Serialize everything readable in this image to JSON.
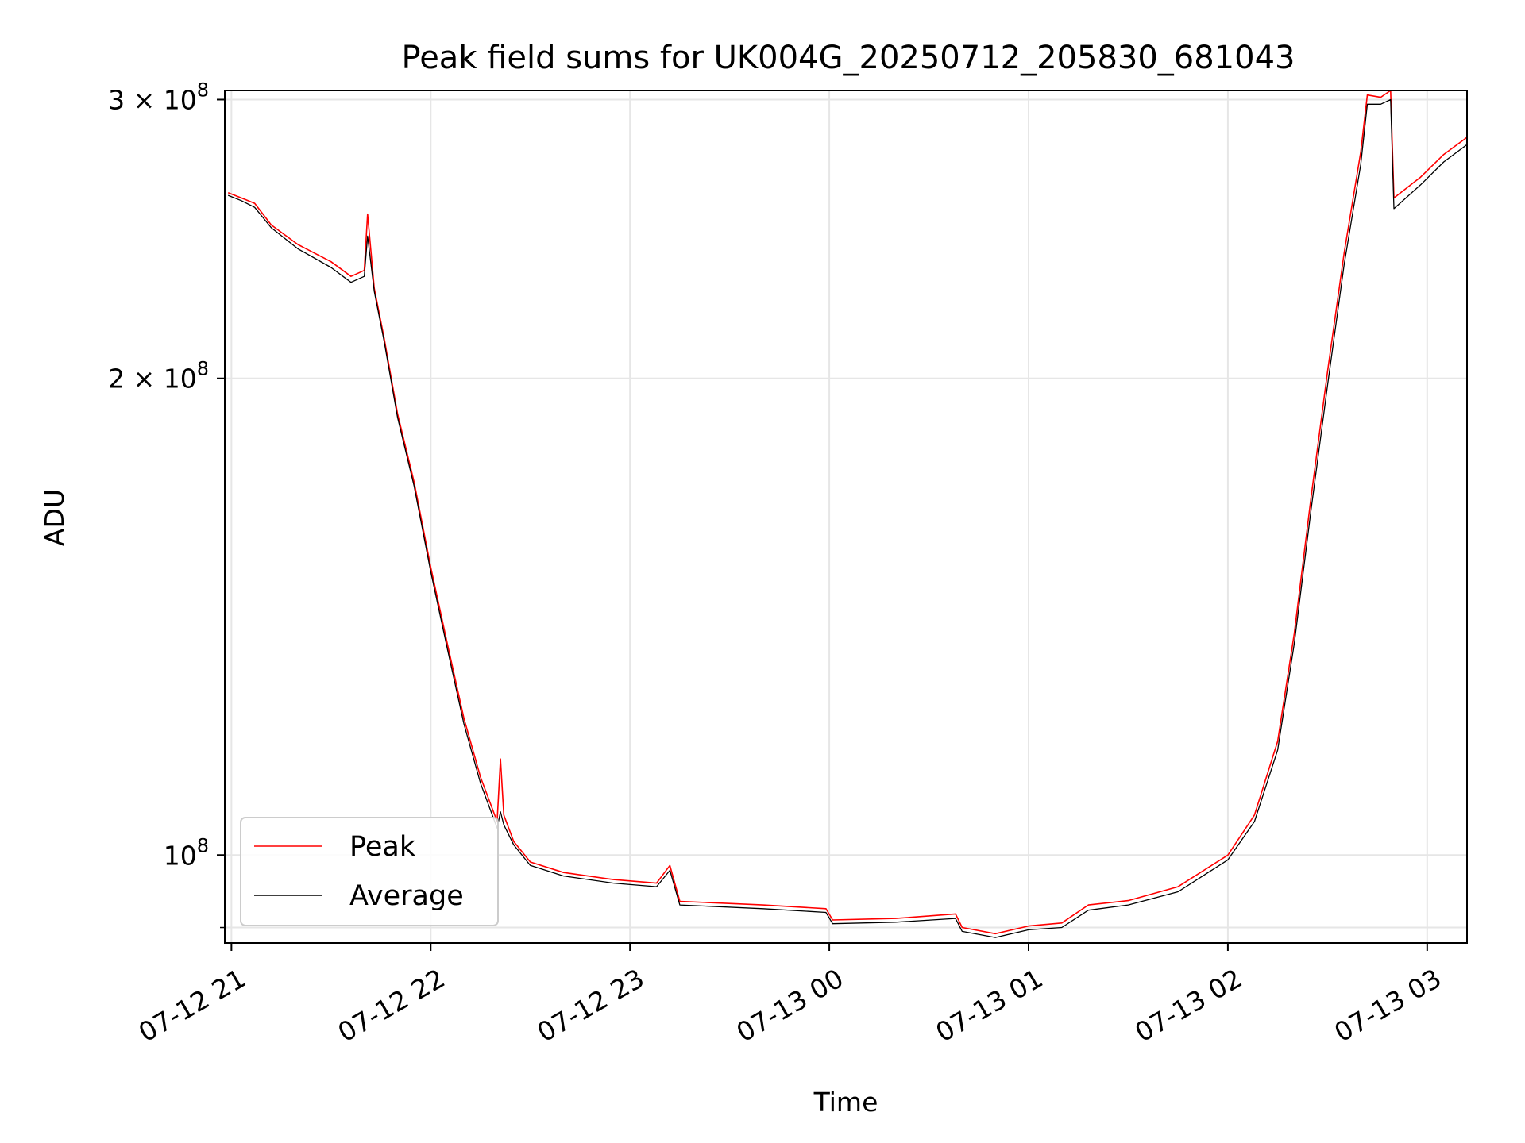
{
  "chart_data": {
    "type": "line",
    "title": "Peak field sums for UK004G_20250712_205830_681043",
    "xlabel": "Time",
    "ylabel": "ADU",
    "y_scale": "log",
    "xlim": [
      "2025-07-12 20:58",
      "2025-07-13 03:12"
    ],
    "ylim": [
      88000000,
      304000000
    ],
    "grid": true,
    "legend_position": "lower-left",
    "x_ticks": [
      {
        "label": "07-12 21",
        "value": "2025-07-12 21:00"
      },
      {
        "label": "07-12 22",
        "value": "2025-07-12 22:00"
      },
      {
        "label": "07-12 23",
        "value": "2025-07-12 23:00"
      },
      {
        "label": "07-13 00",
        "value": "2025-07-13 00:00"
      },
      {
        "label": "07-13 01",
        "value": "2025-07-13 01:00"
      },
      {
        "label": "07-13 02",
        "value": "2025-07-13 02:00"
      },
      {
        "label": "07-13 03",
        "value": "2025-07-13 03:00"
      }
    ],
    "y_ticks": [
      {
        "label_base": "3 × 10",
        "label_exp": "8",
        "value": 300000000
      },
      {
        "label_base": "2 × 10",
        "label_exp": "8",
        "value": 200000000
      },
      {
        "label_base": "10",
        "label_exp": "8",
        "value": 100000000
      }
    ],
    "series": [
      {
        "name": "Peak",
        "color": "#ff0000",
        "points": [
          [
            "2025-07-12 20:59",
            262000000
          ],
          [
            "2025-07-12 21:03",
            260000000
          ],
          [
            "2025-07-12 21:07",
            258000000
          ],
          [
            "2025-07-12 21:12",
            250000000
          ],
          [
            "2025-07-12 21:20",
            243000000
          ],
          [
            "2025-07-12 21:30",
            237000000
          ],
          [
            "2025-07-12 21:36",
            232000000
          ],
          [
            "2025-07-12 21:40",
            234000000
          ],
          [
            "2025-07-12 21:41",
            254000000
          ],
          [
            "2025-07-12 21:43",
            228000000
          ],
          [
            "2025-07-12 21:46",
            212000000
          ],
          [
            "2025-07-12 21:50",
            190000000
          ],
          [
            "2025-07-12 21:55",
            172000000
          ],
          [
            "2025-07-12 22:00",
            152000000
          ],
          [
            "2025-07-12 22:05",
            136000000
          ],
          [
            "2025-07-12 22:10",
            122000000
          ],
          [
            "2025-07-12 22:15",
            112000000
          ],
          [
            "2025-07-12 22:20",
            105000000
          ],
          [
            "2025-07-12 22:21",
            115000000
          ],
          [
            "2025-07-12 22:22",
            106000000
          ],
          [
            "2025-07-12 22:25",
            102000000
          ],
          [
            "2025-07-12 22:30",
            99000000
          ],
          [
            "2025-07-12 22:40",
            97500000
          ],
          [
            "2025-07-12 22:55",
            96500000
          ],
          [
            "2025-07-12 23:08",
            96000000
          ],
          [
            "2025-07-12 23:12",
            98500000
          ],
          [
            "2025-07-12 23:15",
            93500000
          ],
          [
            "2025-07-12 23:40",
            93000000
          ],
          [
            "2025-07-12 23:59",
            92500000
          ],
          [
            "2025-07-13 00:01",
            91000000
          ],
          [
            "2025-07-13 00:20",
            91200000
          ],
          [
            "2025-07-13 00:38",
            91800000
          ],
          [
            "2025-07-13 00:40",
            90000000
          ],
          [
            "2025-07-13 00:50",
            89200000
          ],
          [
            "2025-07-13 01:00",
            90200000
          ],
          [
            "2025-07-13 01:10",
            90600000
          ],
          [
            "2025-07-13 01:18",
            93000000
          ],
          [
            "2025-07-13 01:30",
            93600000
          ],
          [
            "2025-07-13 01:45",
            95500000
          ],
          [
            "2025-07-13 02:00",
            100000000
          ],
          [
            "2025-07-13 02:08",
            106000000
          ],
          [
            "2025-07-13 02:15",
            118000000
          ],
          [
            "2025-07-13 02:20",
            138000000
          ],
          [
            "2025-07-13 02:25",
            168000000
          ],
          [
            "2025-07-13 02:30",
            202000000
          ],
          [
            "2025-07-13 02:35",
            240000000
          ],
          [
            "2025-07-13 02:40",
            278000000
          ],
          [
            "2025-07-13 02:42",
            302000000
          ],
          [
            "2025-07-13 02:46",
            301000000
          ],
          [
            "2025-07-13 02:49",
            304000000
          ],
          [
            "2025-07-13 02:50",
            260000000
          ],
          [
            "2025-07-13 02:58",
            268000000
          ],
          [
            "2025-07-13 03:05",
            277000000
          ],
          [
            "2025-07-13 03:12",
            284000000
          ]
        ]
      },
      {
        "name": "Average",
        "color": "#000000",
        "points": [
          [
            "2025-07-12 20:59",
            261000000
          ],
          [
            "2025-07-12 21:03",
            259000000
          ],
          [
            "2025-07-12 21:07",
            256500000
          ],
          [
            "2025-07-12 21:12",
            249000000
          ],
          [
            "2025-07-12 21:20",
            241500000
          ],
          [
            "2025-07-12 21:30",
            235000000
          ],
          [
            "2025-07-12 21:36",
            230000000
          ],
          [
            "2025-07-12 21:40",
            232000000
          ],
          [
            "2025-07-12 21:41",
            246000000
          ],
          [
            "2025-07-12 21:43",
            227000000
          ],
          [
            "2025-07-12 21:46",
            211000000
          ],
          [
            "2025-07-12 21:50",
            189000000
          ],
          [
            "2025-07-12 21:55",
            171000000
          ],
          [
            "2025-07-12 22:00",
            151000000
          ],
          [
            "2025-07-12 22:05",
            135000000
          ],
          [
            "2025-07-12 22:10",
            121000000
          ],
          [
            "2025-07-12 22:15",
            111000000
          ],
          [
            "2025-07-12 22:20",
            104000000
          ],
          [
            "2025-07-12 22:21",
            106500000
          ],
          [
            "2025-07-12 22:22",
            104500000
          ],
          [
            "2025-07-12 22:25",
            101500000
          ],
          [
            "2025-07-12 22:30",
            98500000
          ],
          [
            "2025-07-12 22:40",
            97000000
          ],
          [
            "2025-07-12 22:55",
            96000000
          ],
          [
            "2025-07-12 23:08",
            95500000
          ],
          [
            "2025-07-12 23:12",
            97800000
          ],
          [
            "2025-07-12 23:15",
            93000000
          ],
          [
            "2025-07-12 23:40",
            92500000
          ],
          [
            "2025-07-12 23:59",
            92000000
          ],
          [
            "2025-07-13 00:01",
            90500000
          ],
          [
            "2025-07-13 00:20",
            90700000
          ],
          [
            "2025-07-13 00:38",
            91200000
          ],
          [
            "2025-07-13 00:40",
            89500000
          ],
          [
            "2025-07-13 00:50",
            88700000
          ],
          [
            "2025-07-13 01:00",
            89700000
          ],
          [
            "2025-07-13 01:10",
            90000000
          ],
          [
            "2025-07-13 01:18",
            92300000
          ],
          [
            "2025-07-13 01:30",
            93000000
          ],
          [
            "2025-07-13 01:45",
            94800000
          ],
          [
            "2025-07-13 02:00",
            99300000
          ],
          [
            "2025-07-13 02:08",
            105000000
          ],
          [
            "2025-07-13 02:15",
            116500000
          ],
          [
            "2025-07-13 02:20",
            136000000
          ],
          [
            "2025-07-13 02:25",
            165000000
          ],
          [
            "2025-07-13 02:30",
            198000000
          ],
          [
            "2025-07-13 02:35",
            236000000
          ],
          [
            "2025-07-13 02:40",
            273000000
          ],
          [
            "2025-07-13 02:42",
            298000000
          ],
          [
            "2025-07-13 02:46",
            298000000
          ],
          [
            "2025-07-13 02:49",
            300000000
          ],
          [
            "2025-07-13 02:50",
            256000000
          ],
          [
            "2025-07-13 02:58",
            265000000
          ],
          [
            "2025-07-13 03:05",
            274000000
          ],
          [
            "2025-07-13 03:12",
            281000000
          ]
        ]
      }
    ]
  }
}
